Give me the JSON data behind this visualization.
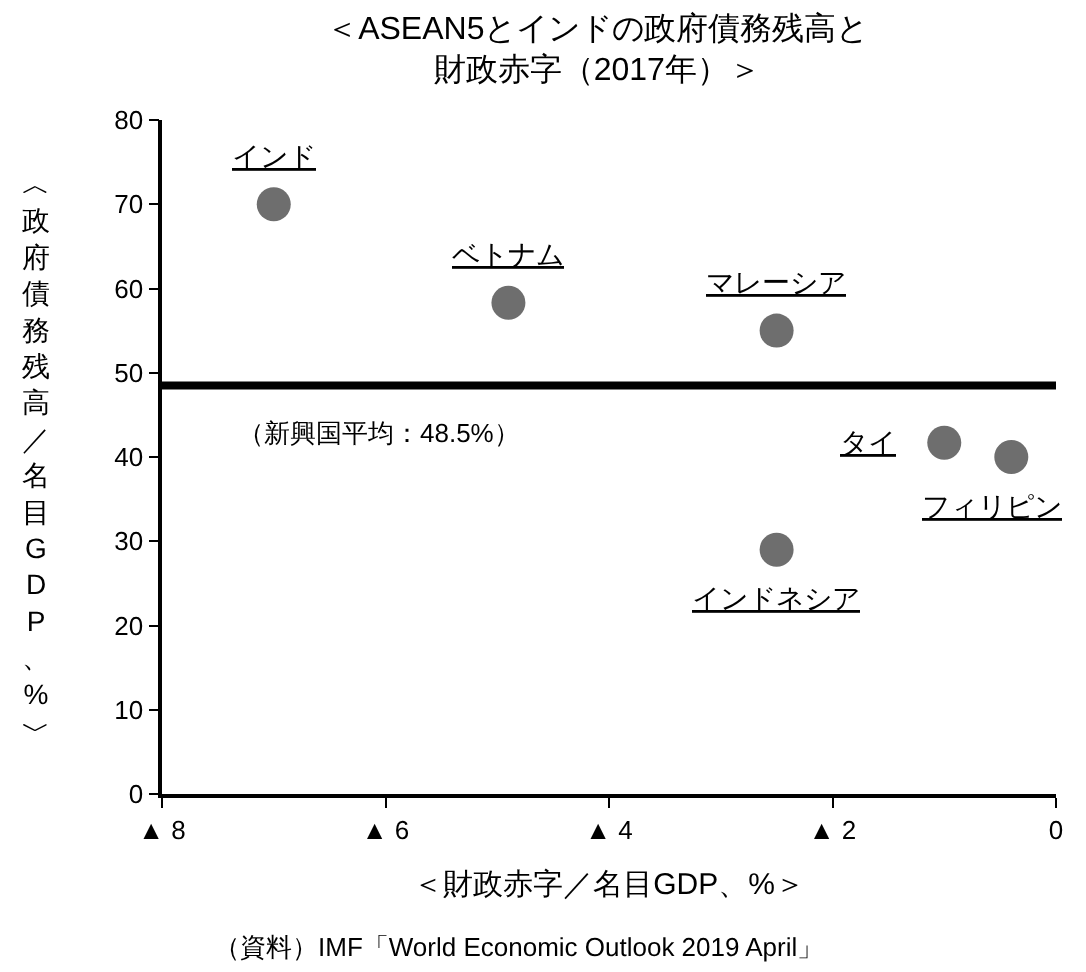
{
  "chart_data": {
    "type": "scatter",
    "title": "＜ASEAN5とインドの政府債務残高と財政赤字（2017年）＞",
    "xlabel": "＜財政赤字／名目GDP、%＞",
    "ylabel": "︿政府債務残高／名目GDP、%﹀",
    "x": [
      -7.0,
      -4.9,
      -2.5,
      -2.5,
      -1.0,
      -0.4
    ],
    "series": [
      {
        "color": "#6e6e6e",
        "values": [
          70,
          58.3,
          55,
          29,
          41.7,
          40
        ]
      }
    ],
    "xlim": [
      -8,
      0
    ],
    "xticks": [
      {
        "value": -8,
        "label": "▲ 8"
      },
      {
        "value": -6,
        "label": "▲ 6"
      },
      {
        "value": -4,
        "label": "▲ 4"
      },
      {
        "value": -2,
        "label": "▲ 2"
      },
      0
    ],
    "ylim": [
      0,
      80
    ],
    "yticks": [
      0,
      10,
      20,
      30,
      40,
      50,
      60,
      70,
      80
    ],
    "ref_lines": [
      {
        "axis": "y",
        "value": 48.5,
        "label": "（新興国平均：48.5%）",
        "color": "#000000"
      }
    ],
    "annotations": [
      {
        "text": "インド",
        "x": -7.0,
        "y": 70
      },
      {
        "text": "ベトナム",
        "x": -4.9,
        "y": 58.3
      },
      {
        "text": "マレーシア",
        "x": -2.5,
        "y": 55
      },
      {
        "text": "インドネシア",
        "x": -2.5,
        "y": 29
      },
      {
        "text": "タイ",
        "x": -1.0,
        "y": 41.7
      },
      {
        "text": "フィリピン",
        "x": -0.4,
        "y": 40
      },
      "（資料）IMF「World Economic Outlook 2019 April」"
    ],
    "marker": "circle"
  }
}
